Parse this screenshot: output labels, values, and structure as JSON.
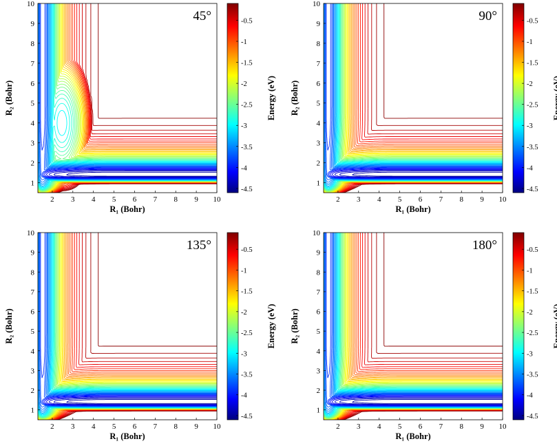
{
  "chart_data": [
    {
      "type": "contour",
      "angle_label": "45°",
      "xlabel": "R₁ (Bohr)",
      "ylabel": "R₂ (Bohr)",
      "xlim": [
        1.3,
        10
      ],
      "ylim": [
        0.5,
        10
      ],
      "xticks": [
        "2",
        "3",
        "4",
        "5",
        "6",
        "7",
        "8",
        "9",
        "10"
      ],
      "yticks": [
        "1",
        "2",
        "3",
        "4",
        "5",
        "6",
        "7",
        "8",
        "9",
        "10"
      ],
      "colorbar": {
        "label": "Energy (eV)",
        "range": [
          -4.6,
          -0.1
        ],
        "ticks": [
          "-0.5",
          "-1",
          "-1.5",
          "-2",
          "-2.5",
          "-3",
          "-3.5",
          "-4",
          "-4.5"
        ]
      },
      "well": {
        "r1": 2.45,
        "r2": 4.0,
        "depth_eV": -3.0
      },
      "valley_minimum": {
        "r2": 1.4,
        "energy_eV": -4.6
      }
    },
    {
      "type": "contour",
      "angle_label": "90°",
      "xlabel": "R₁ (Bohr)",
      "ylabel": "R₂ (Bohr)",
      "xlim": [
        1.3,
        10
      ],
      "ylim": [
        0.5,
        10
      ],
      "xticks": [
        "2",
        "3",
        "4",
        "5",
        "6",
        "7",
        "8",
        "9",
        "10"
      ],
      "yticks": [
        "1",
        "2",
        "3",
        "4",
        "5",
        "6",
        "7",
        "8",
        "9",
        "10"
      ],
      "colorbar": {
        "label": "Energy (eV)",
        "range": [
          -4.6,
          -0.1
        ],
        "ticks": [
          "-0.5",
          "-1",
          "-1.5",
          "-2",
          "-2.5",
          "-3",
          "-3.5",
          "-4",
          "-4.5"
        ]
      },
      "valley_minimum": {
        "r2": 1.4,
        "energy_eV": -4.6
      }
    },
    {
      "type": "contour",
      "angle_label": "135°",
      "xlabel": "R₁ (Bohr)",
      "ylabel": "R₂ (Bohr)",
      "xlim": [
        1.3,
        10
      ],
      "ylim": [
        0.5,
        10
      ],
      "xticks": [
        "2",
        "3",
        "4",
        "5",
        "6",
        "7",
        "8",
        "9",
        "10"
      ],
      "yticks": [
        "1",
        "2",
        "3",
        "4",
        "5",
        "6",
        "7",
        "8",
        "9",
        "10"
      ],
      "colorbar": {
        "label": "Energy (eV)",
        "range": [
          -4.6,
          -0.1
        ],
        "ticks": [
          "-0.5",
          "-1",
          "-1.5",
          "-2",
          "-2.5",
          "-3",
          "-3.5",
          "-4",
          "-4.5"
        ]
      },
      "valley_minimum": {
        "r2": 1.4,
        "energy_eV": -4.6
      }
    },
    {
      "type": "contour",
      "angle_label": "180°",
      "xlabel": "R₁ (Bohr)",
      "ylabel": "R₂ (Bohr)",
      "xlim": [
        1.3,
        10
      ],
      "ylim": [
        0.5,
        10
      ],
      "xticks": [
        "2",
        "3",
        "4",
        "5",
        "6",
        "7",
        "8",
        "9",
        "10"
      ],
      "yticks": [
        "1",
        "2",
        "3",
        "4",
        "5",
        "6",
        "7",
        "8",
        "9",
        "10"
      ],
      "colorbar": {
        "label": "Energy (eV)",
        "range": [
          -4.6,
          -0.1
        ],
        "ticks": [
          "-0.5",
          "-1",
          "-1.5",
          "-2",
          "-2.5",
          "-3",
          "-3.5",
          "-4",
          "-4.5"
        ]
      },
      "valley_minimum": {
        "r2": 1.4,
        "energy_eV": -4.6
      }
    }
  ]
}
